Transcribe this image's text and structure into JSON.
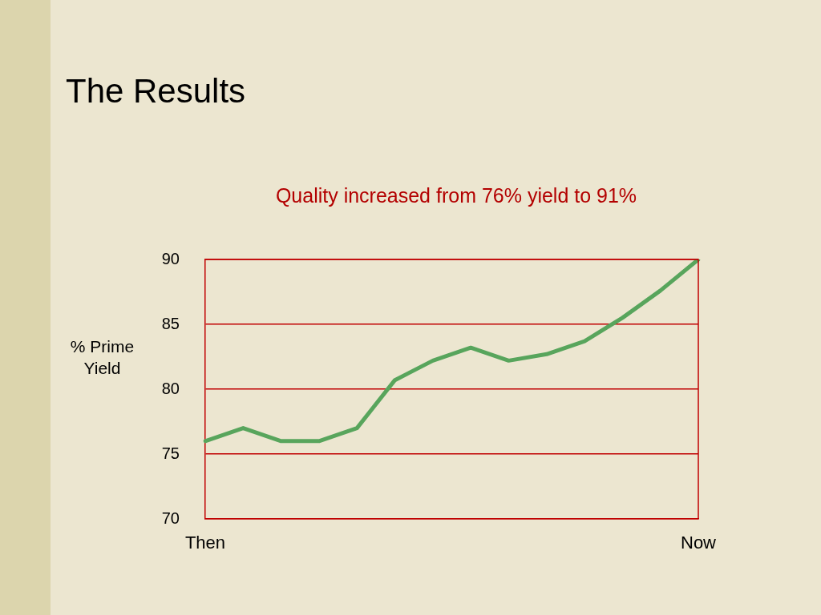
{
  "chart_data": {
    "type": "line",
    "title": "The Results",
    "subtitle": "Quality increased from 76% yield to 91%",
    "ylabel": "% Prime Yield",
    "categories": [
      "Then",
      null,
      null,
      null,
      null,
      null,
      null,
      null,
      null,
      null,
      null,
      null,
      null,
      "Now"
    ],
    "values": [
      76,
      77,
      76,
      76,
      77,
      80.7,
      82.2,
      83.2,
      82.2,
      82.7,
      83.7,
      85.5,
      87.6,
      90
    ],
    "color": "#58a55c",
    "ylim": [
      70,
      90
    ],
    "yticks": [
      70,
      75,
      80,
      85,
      90
    ],
    "grid": "y",
    "marker": "none",
    "line_style": "solid"
  }
}
